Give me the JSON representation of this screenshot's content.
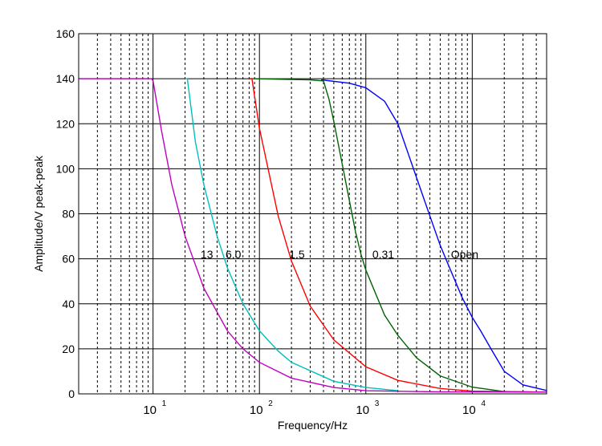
{
  "chart_data": {
    "type": "line",
    "title": "",
    "xlabel": "Frequency/Hz",
    "ylabel": "Amplitude/V peak-peak",
    "xscale": "log",
    "xlim": [
      2,
      50000
    ],
    "ylim": [
      0,
      160
    ],
    "yticks": [
      0,
      20,
      40,
      60,
      80,
      100,
      120,
      140,
      160
    ],
    "xticks": [
      10,
      100,
      1000,
      10000
    ],
    "xtick_labels": [
      {
        "base": "10",
        "exp": "1"
      },
      {
        "base": "10",
        "exp": "2"
      },
      {
        "base": "10",
        "exp": "3"
      },
      {
        "base": "10",
        "exp": "4"
      }
    ],
    "grid": {
      "y": "solid",
      "x_major": "solid",
      "x_minor": "dotted"
    },
    "series": [
      {
        "color": "#0000ff",
        "points": [
          [
            380,
            139.5
          ],
          [
            700,
            138
          ],
          [
            1000,
            136
          ],
          [
            1500,
            130
          ],
          [
            2000,
            120
          ],
          [
            3000,
            96
          ],
          [
            4000,
            79
          ],
          [
            5000,
            66
          ],
          [
            6000,
            57
          ],
          [
            8000,
            43
          ],
          [
            10000,
            34
          ],
          [
            12000,
            28
          ],
          [
            15000,
            20
          ],
          [
            20000,
            10
          ],
          [
            30000,
            4
          ],
          [
            50000,
            1.5
          ]
        ]
      },
      {
        "color": "#006400",
        "points": [
          [
            80,
            140
          ],
          [
            300,
            139.5
          ],
          [
            400,
            139
          ],
          [
            450,
            131
          ],
          [
            500,
            121
          ],
          [
            600,
            102
          ],
          [
            700,
            86
          ],
          [
            800,
            72
          ],
          [
            900,
            62
          ],
          [
            1000,
            55
          ],
          [
            1500,
            35
          ],
          [
            2000,
            26
          ],
          [
            3000,
            16
          ],
          [
            5000,
            8
          ],
          [
            10000,
            3
          ],
          [
            20000,
            1
          ],
          [
            50000,
            0.8
          ]
        ]
      },
      {
        "color": "#ff0000",
        "points": [
          [
            80,
            140
          ],
          [
            85,
            140
          ],
          [
            100,
            118
          ],
          [
            150,
            79
          ],
          [
            200,
            59
          ],
          [
            300,
            39
          ],
          [
            500,
            24
          ],
          [
            1000,
            12
          ],
          [
            2000,
            6
          ],
          [
            5000,
            2.4
          ],
          [
            10000,
            1.2
          ],
          [
            50000,
            0.8
          ]
        ]
      },
      {
        "color": "#00bfbf",
        "points": [
          [
            20,
            140
          ],
          [
            21,
            140
          ],
          [
            25,
            112
          ],
          [
            30,
            93
          ],
          [
            40,
            70
          ],
          [
            50,
            56
          ],
          [
            70,
            40
          ],
          [
            100,
            28
          ],
          [
            150,
            19
          ],
          [
            200,
            14
          ],
          [
            500,
            5.6
          ],
          [
            1000,
            2.8
          ],
          [
            2000,
            1.4
          ]
        ]
      },
      {
        "color": "#bf00bf",
        "points": [
          [
            2,
            140
          ],
          [
            9.7,
            140
          ],
          [
            10,
            139
          ],
          [
            12,
            117
          ],
          [
            15,
            93
          ],
          [
            20,
            70
          ],
          [
            30,
            47
          ],
          [
            50,
            28
          ],
          [
            70,
            20
          ],
          [
            100,
            14
          ],
          [
            200,
            7
          ],
          [
            500,
            2.8
          ],
          [
            1000,
            1.4
          ],
          [
            5000,
            0.9
          ],
          [
            50000,
            0.8
          ]
        ]
      }
    ],
    "annotations": [
      {
        "text": "13",
        "x": 28,
        "y": 62
      },
      {
        "text": "6.0",
        "x": 48,
        "y": 62
      },
      {
        "text": "1.5",
        "x": 190,
        "y": 62
      },
      {
        "text": "0.31",
        "x": 1150,
        "y": 62
      },
      {
        "text": "Open",
        "x": 6300,
        "y": 62
      }
    ]
  }
}
